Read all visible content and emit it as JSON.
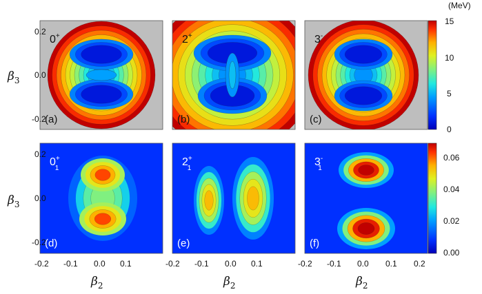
{
  "chart_data": [
    {
      "type": "heatmap",
      "panel_label": "(a)",
      "state_label": "0",
      "state_sup": "+",
      "state_sub": "",
      "xlabel": "",
      "ylabel": "β3",
      "xlim": [
        -0.2,
        0.2
      ],
      "ylim": [
        -0.25,
        0.25
      ],
      "color_scale": "energy"
    },
    {
      "type": "heatmap",
      "panel_label": "(b)",
      "state_label": "2",
      "state_sup": "+",
      "state_sub": "",
      "xlabel": "",
      "ylabel": "",
      "xlim": [
        -0.2,
        0.2
      ],
      "ylim": [
        -0.25,
        0.25
      ],
      "color_scale": "energy"
    },
    {
      "type": "heatmap",
      "panel_label": "(c)",
      "state_label": "3",
      "state_sup": "-",
      "state_sub": "",
      "xlabel": "",
      "ylabel": "",
      "xlim": [
        -0.2,
        0.2
      ],
      "ylim": [
        -0.25,
        0.25
      ],
      "color_scale": "energy"
    },
    {
      "type": "heatmap",
      "panel_label": "(d)",
      "state_label": "0",
      "state_sup": "+",
      "state_sub": "1",
      "xlabel": "β2",
      "ylabel": "β3",
      "xlim": [
        -0.2,
        0.2
      ],
      "ylim": [
        -0.25,
        0.25
      ],
      "color_scale": "density"
    },
    {
      "type": "heatmap",
      "panel_label": "(e)",
      "state_label": "2",
      "state_sup": "+",
      "state_sub": "1",
      "xlabel": "β2",
      "ylabel": "",
      "xlim": [
        -0.2,
        0.2
      ],
      "ylim": [
        -0.25,
        0.25
      ],
      "color_scale": "density"
    },
    {
      "type": "heatmap",
      "panel_label": "(f)",
      "state_label": "3",
      "state_sup": "-",
      "state_sub": "1",
      "xlabel": "β2",
      "ylabel": "",
      "xlim": [
        -0.2,
        0.2
      ],
      "ylim": [
        -0.25,
        0.25
      ],
      "color_scale": "density"
    }
  ],
  "axes": {
    "y_ticks": [
      "0.2",
      "0.0",
      "-0.2"
    ],
    "x_ticks_panel_1": [
      "-0.2",
      "-0.1",
      "0.0",
      "0.1"
    ],
    "x_ticks_panel_2": [
      "-0.2",
      "-0.1",
      "0.0",
      "0.1"
    ],
    "x_ticks_panel_3": [
      "-0.2",
      "-0.1",
      "0.0",
      "0.1",
      "0.2"
    ],
    "y_label_main": "β",
    "y_label_sub": "3",
    "x_label_main": "β",
    "x_label_sub": "2"
  },
  "colorbar_top": {
    "unit": "(MeV)",
    "min": 0,
    "max": 15,
    "ticks": [
      "15",
      "10",
      "5",
      "0"
    ]
  },
  "colorbar_bottom": {
    "min": 0,
    "max": 0.07,
    "ticks": [
      "0.06",
      "0.04",
      "0.02",
      "0.00"
    ]
  },
  "colors": {
    "background_gray": "#bebebe",
    "jet_low": "#0000b8",
    "jet_high": "#b00000"
  }
}
